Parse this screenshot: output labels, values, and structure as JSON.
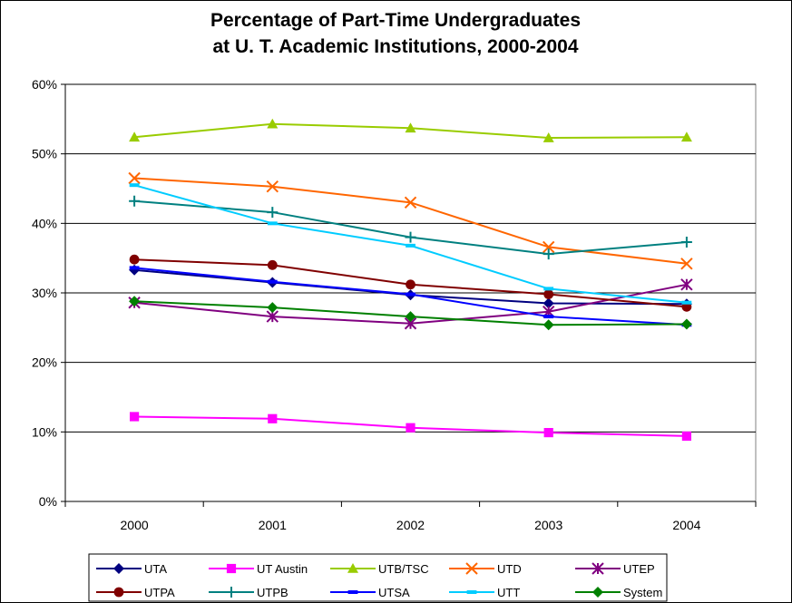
{
  "chart_data": {
    "type": "line",
    "title": [
      "Percentage of Part-Time Undergraduates",
      "at U. T. Academic Institutions, 2000-2004"
    ],
    "xlabel": "",
    "ylabel": "",
    "categories": [
      "2000",
      "2001",
      "2002",
      "2003",
      "2004"
    ],
    "ylim": [
      0,
      60
    ],
    "yticks": [
      0,
      10,
      20,
      30,
      40,
      50,
      60
    ],
    "ytick_labels": [
      "0%",
      "10%",
      "20%",
      "30%",
      "40%",
      "50%",
      "60%"
    ],
    "grid": "horizontal",
    "legend_position": "bottom",
    "series": [
      {
        "name": "UTA",
        "color": "#000080",
        "marker": "diamond",
        "values": [
          33.3,
          31.5,
          29.7,
          28.5,
          28.4
        ]
      },
      {
        "name": "UT Austin",
        "color": "#FF00FF",
        "marker": "square",
        "values": [
          12.2,
          11.9,
          10.6,
          9.9,
          9.4
        ]
      },
      {
        "name": "UTB/TSC",
        "color": "#99CC00",
        "marker": "triangle",
        "values": [
          52.4,
          54.3,
          53.7,
          52.3,
          52.4
        ]
      },
      {
        "name": "UTD",
        "color": "#FF6600",
        "marker": "x",
        "values": [
          46.5,
          45.3,
          43.0,
          36.6,
          34.2
        ]
      },
      {
        "name": "UTEP",
        "color": "#800080",
        "marker": "star",
        "values": [
          28.6,
          26.6,
          25.6,
          27.3,
          31.2
        ]
      },
      {
        "name": "UTPA",
        "color": "#800000",
        "marker": "circle",
        "values": [
          34.8,
          34.0,
          31.2,
          29.8,
          28.0
        ]
      },
      {
        "name": "UTPB",
        "color": "#008080",
        "marker": "plus",
        "values": [
          43.2,
          41.6,
          38.0,
          35.6,
          37.3
        ]
      },
      {
        "name": "UTSA",
        "color": "#0000FF",
        "marker": "dash",
        "values": [
          33.6,
          31.6,
          29.8,
          26.6,
          25.4
        ]
      },
      {
        "name": "UTT",
        "color": "#00CCFF",
        "marker": "dash",
        "values": [
          45.5,
          40.0,
          36.8,
          30.6,
          28.6
        ]
      },
      {
        "name": "System",
        "color": "#008000",
        "marker": "diamond",
        "values": [
          28.8,
          27.9,
          26.6,
          25.4,
          25.5
        ]
      }
    ]
  }
}
